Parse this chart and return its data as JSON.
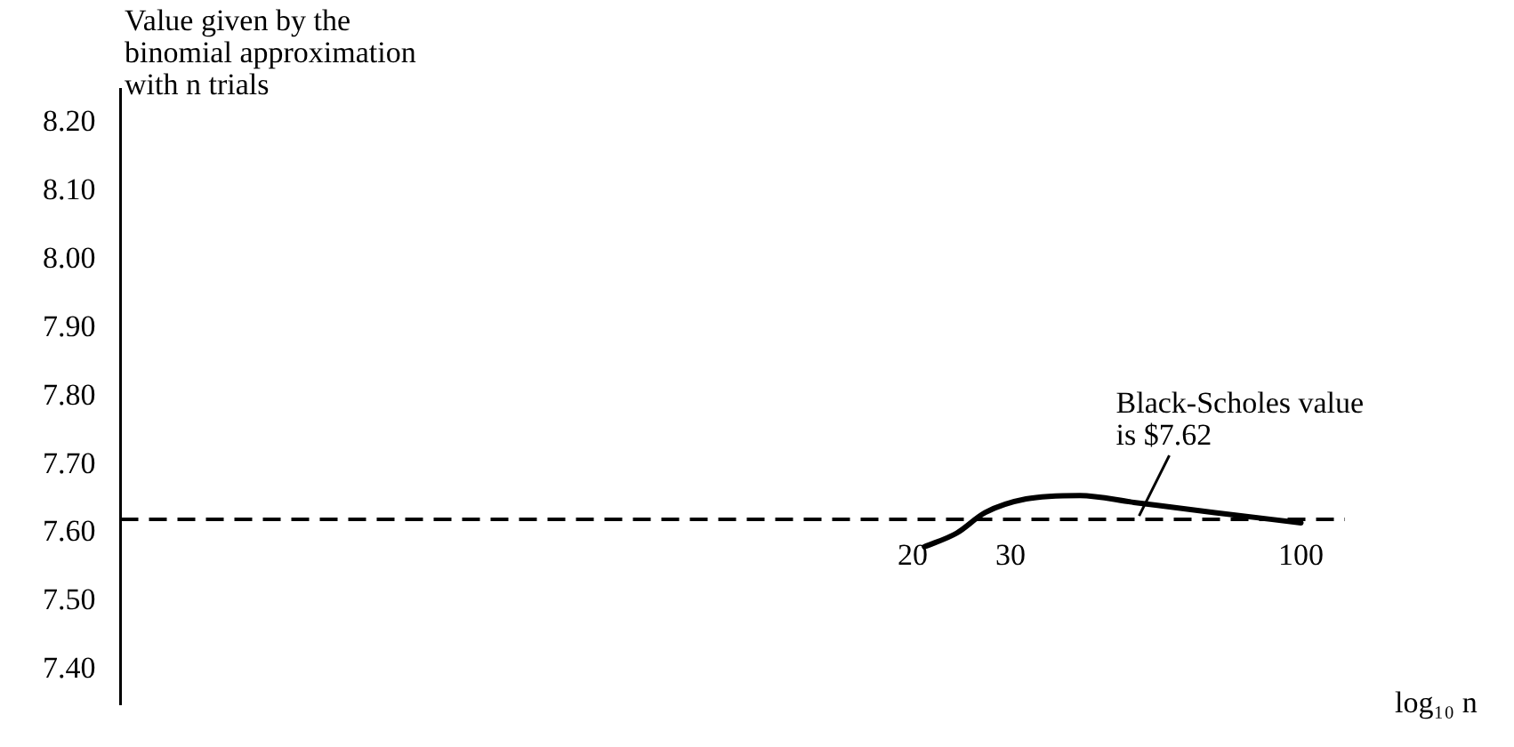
{
  "chart_data": {
    "type": "line",
    "ylabel": "Value given by the binomial approximation with n trials",
    "xlabel": "log₁₀ n",
    "log": "x",
    "x": [
      21,
      24,
      27,
      32,
      40,
      50,
      70,
      100
    ],
    "series": [
      {
        "color": "#000000",
        "values": [
          7.58,
          7.6,
          7.63,
          7.65,
          7.655,
          7.645,
          7.63,
          7.615
        ]
      }
    ],
    "xlim": [
      0.75,
      120
    ],
    "xticks": [
      20,
      30,
      100
    ],
    "ylim": [
      7.35,
      8.25
    ],
    "yticks": [
      {
        "value": 7.4,
        "label": "7.40"
      },
      {
        "value": 7.5,
        "label": "7.50"
      },
      {
        "value": 7.6,
        "label": "7.60"
      },
      {
        "value": 7.7,
        "label": "7.70"
      },
      {
        "value": 7.8,
        "label": "7.80"
      },
      {
        "value": 7.9,
        "label": "7.90"
      },
      {
        "value": 8,
        "label": "8.00"
      },
      {
        "value": 8.1,
        "label": "8.10"
      },
      {
        "value": 8.2,
        "label": "8.20"
      }
    ],
    "ref_lines": [
      {
        "axis": "y",
        "value": 7.62,
        "label": "Black-Scholes value is $7.62",
        "color": "#000000",
        "line_style": "dashed"
      }
    ],
    "grid": false,
    "legend": false,
    "marker": "none",
    "line_style": "solid"
  }
}
